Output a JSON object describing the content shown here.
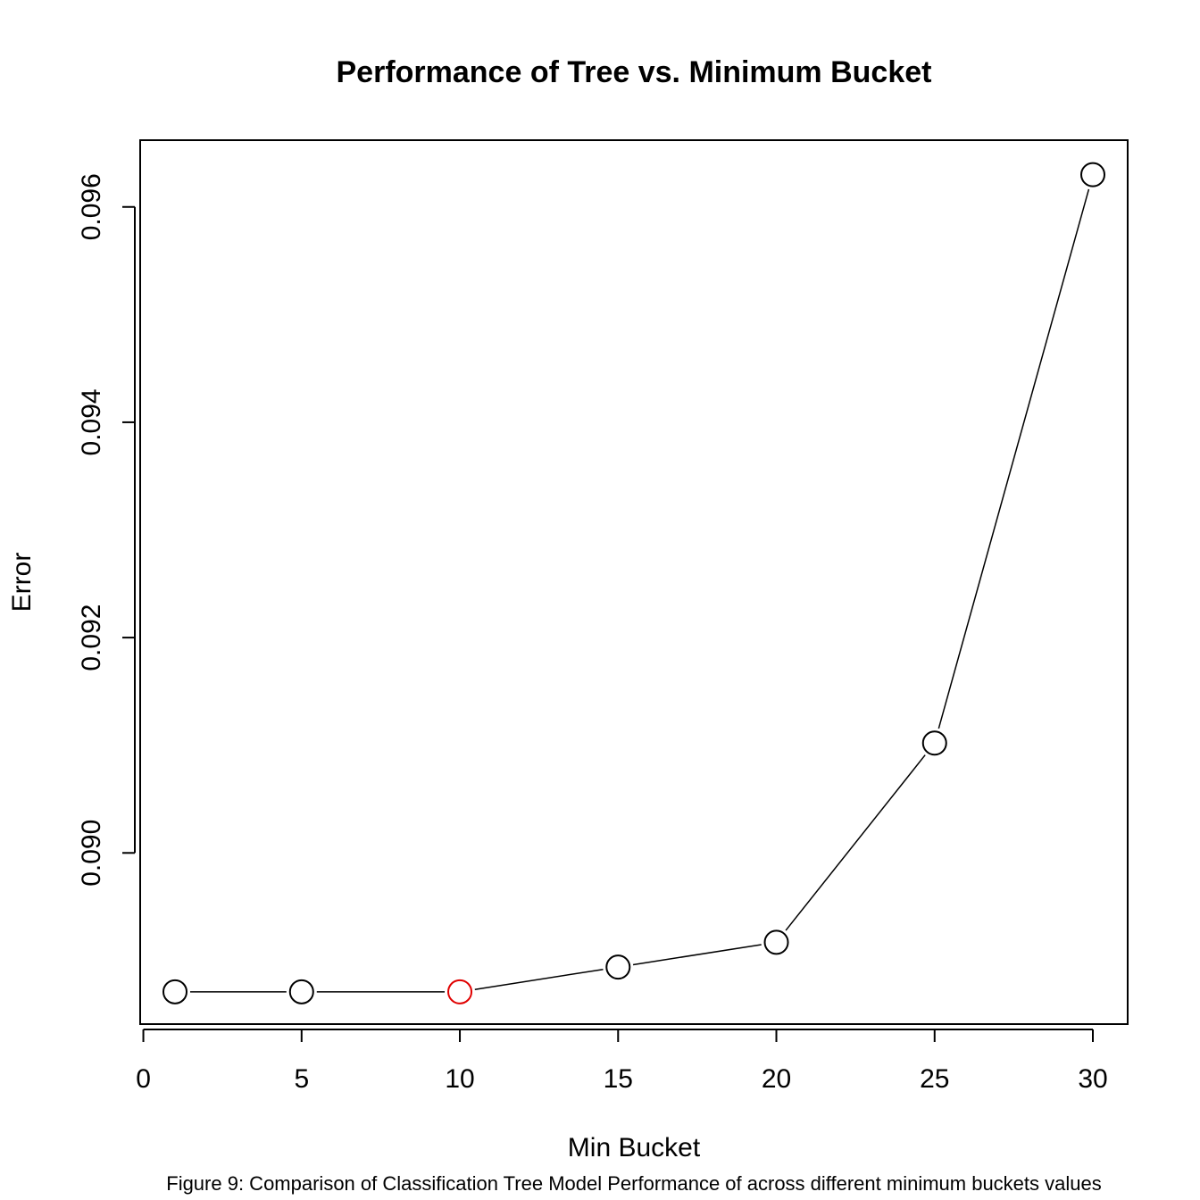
{
  "chart_data": {
    "type": "line",
    "title": "Performance of Tree vs. Minimum Bucket",
    "xlabel": "Min Bucket",
    "ylabel": "Error",
    "caption": "Figure 9: Comparison of Classification Tree Model Performance of across different minimum buckets values",
    "x": [
      1,
      5,
      10,
      15,
      20,
      25,
      30
    ],
    "y": [
      0.08871,
      0.08871,
      0.08871,
      0.08894,
      0.08917,
      0.09102,
      0.0963
    ],
    "highlight_index": 2,
    "highlight_color": "#e00000",
    "point_color": "#000000",
    "line_color": "#000000",
    "xlim": [
      -0.1,
      31.1
    ],
    "ylim": [
      0.08841,
      0.09662
    ],
    "xticks": [
      0,
      5,
      10,
      15,
      20,
      25,
      30
    ],
    "yticks": [
      0.09,
      0.092,
      0.094,
      0.096
    ],
    "ytick_labels": [
      "0.090",
      "0.092",
      "0.094",
      "0.096"
    ],
    "grid": false,
    "legend": "none"
  }
}
